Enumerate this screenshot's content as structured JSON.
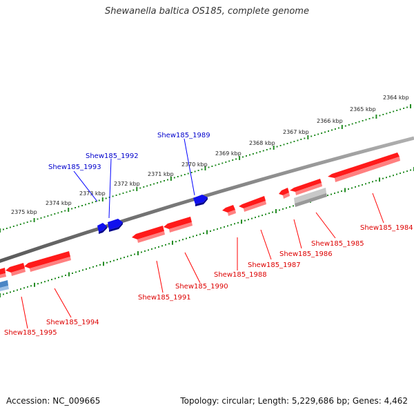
{
  "title": "Shewanella baltica OS185, complete genome",
  "footer": {
    "accession": "Accession: NC_009665",
    "summary": "Topology: circular; Length: 5,229,686 bp; Genes: 4,462"
  },
  "colors": {
    "forward_gene": "#0000ff",
    "reverse_gene": "#ff0000",
    "pseudo_gene": "#b0b0b0",
    "other_gene": "#4a86c5",
    "backbone": "#888888",
    "ruler": "#228b22"
  },
  "ruler_labels": [
    "2364 kbp",
    "2365 kbp",
    "2366 kbp",
    "2367 kbp",
    "2368 kbp",
    "2369 kbp",
    "2370 kbp",
    "2371 kbp",
    "2372 kbp",
    "2373 kbp",
    "2374 kbp",
    "2375 kbp"
  ],
  "gene_labels": {
    "forward": [
      "Shew185_1989",
      "Shew185_1992",
      "Shew185_1993"
    ],
    "reverse": [
      "Shew185_1984",
      "Shew185_1985",
      "Shew185_1986",
      "Shew185_1987",
      "Shew185_1988",
      "Shew185_1990",
      "Shew185_1991",
      "Shew185_1994",
      "Shew185_1995"
    ]
  }
}
